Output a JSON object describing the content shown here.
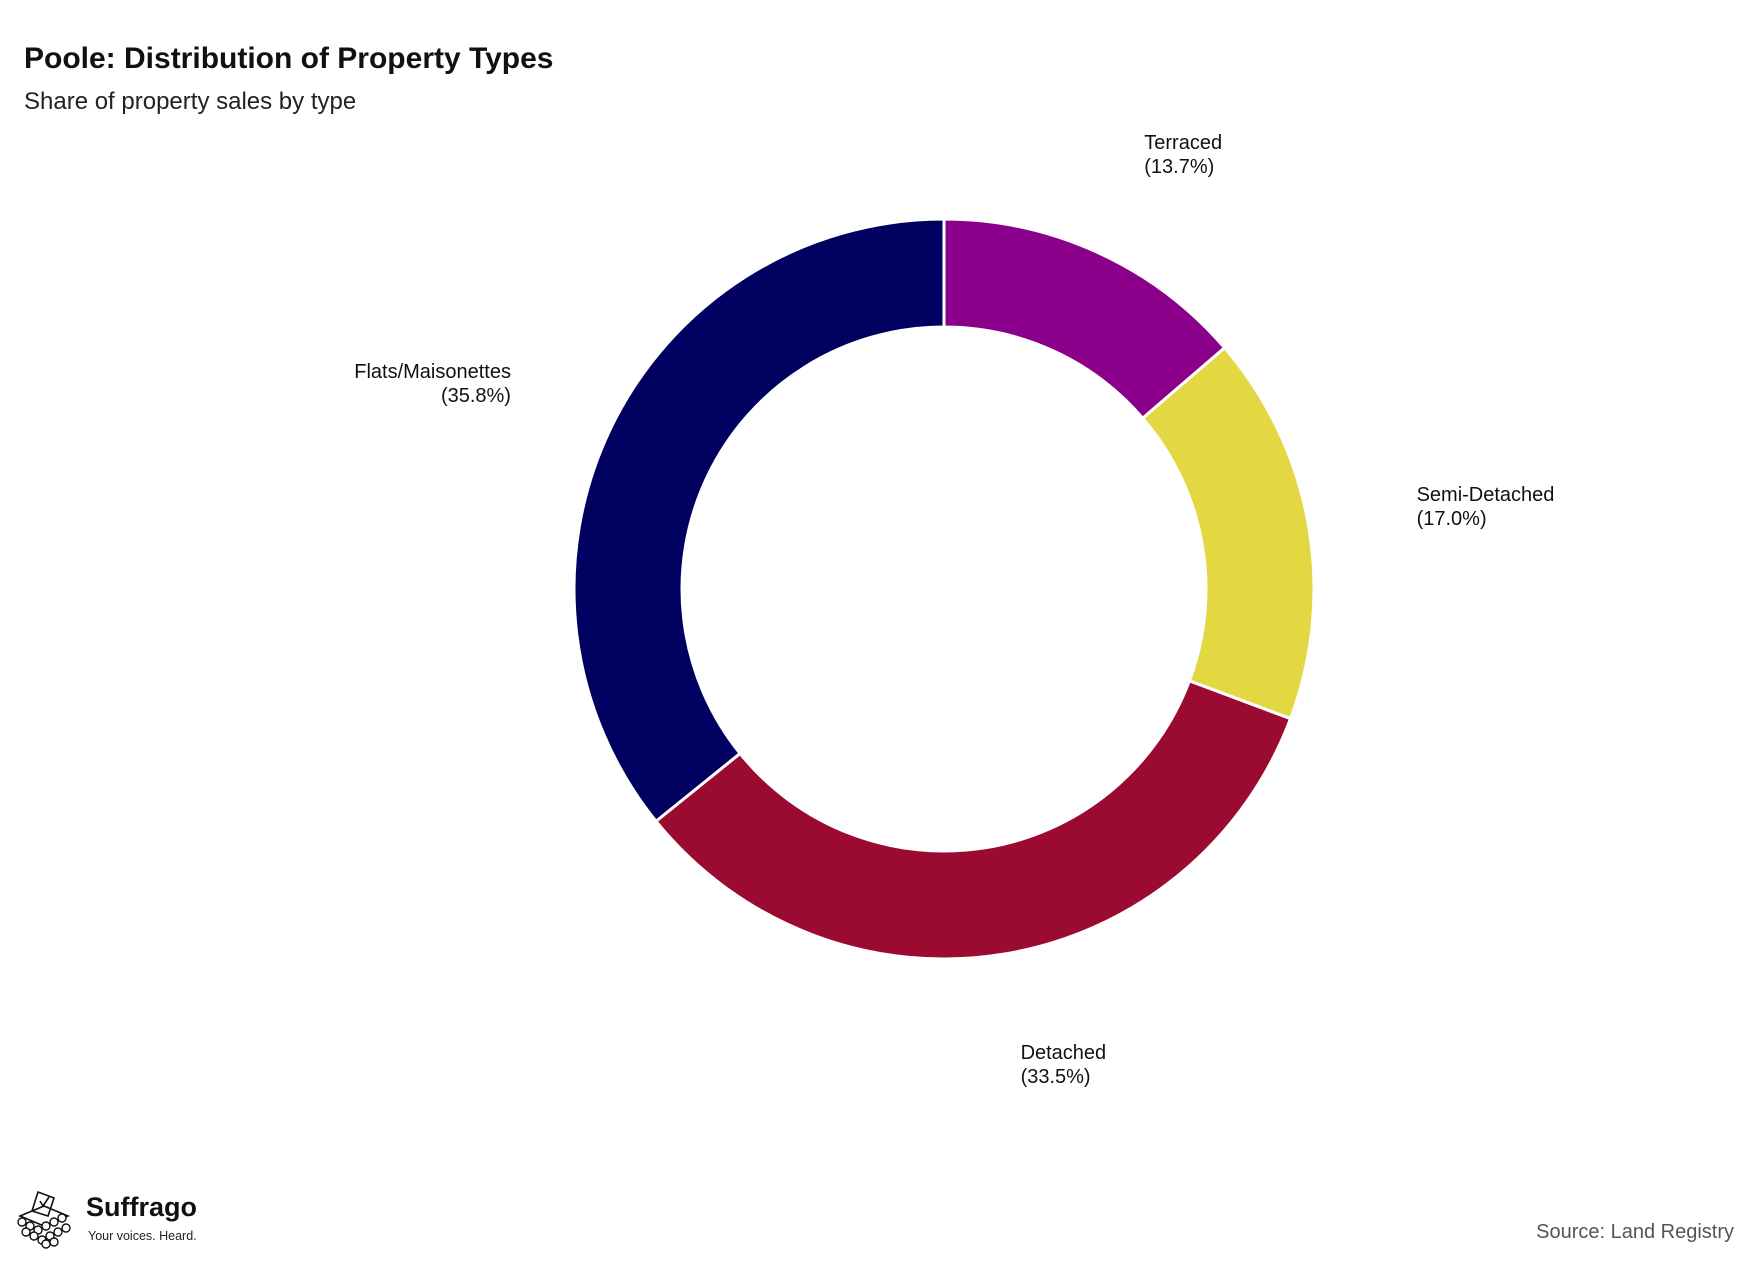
{
  "header": {
    "title": "Poole: Distribution of Property Types",
    "subtitle": "Share of property sales by type"
  },
  "chart_data": {
    "type": "pie",
    "style": "donut",
    "title": "Poole: Distribution of Property Types",
    "subtitle": "Share of property sales by type",
    "slices": [
      {
        "label": "Terraced",
        "value": 13.7,
        "display": "(13.7%)",
        "color": "#8b008b"
      },
      {
        "label": "Semi-Detached",
        "value": 17.0,
        "display": "(17.0%)",
        "color": "#e3d742"
      },
      {
        "label": "Detached",
        "value": 33.5,
        "display": "(33.5%)",
        "color": "#9b0a31"
      },
      {
        "label": "Flats/Maisonettes",
        "value": 35.8,
        "display": "(35.8%)",
        "color": "#000060"
      }
    ],
    "start": "top",
    "direction": "clockwise",
    "legend": "none"
  },
  "footer": {
    "brand_name": "Suffrago",
    "brand_tagline": "Your voices. Heard.",
    "source": "Source: Land Registry"
  },
  "icons": {
    "logo": "ballot-box-icon"
  }
}
